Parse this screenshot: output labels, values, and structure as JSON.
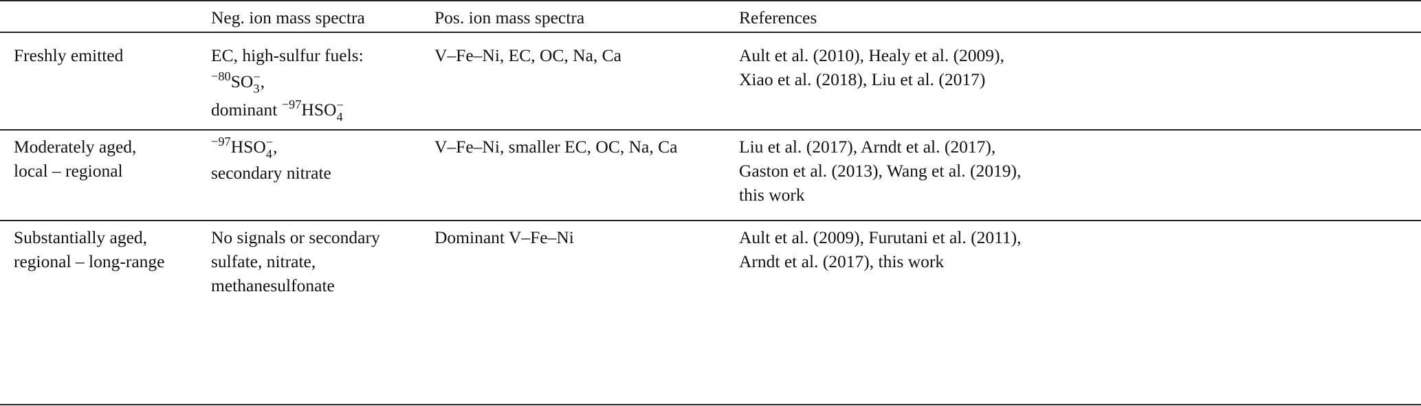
{
  "table": {
    "headers": [
      "",
      "Neg. ion mass spectra",
      "Pos. ion mass spectra",
      "References"
    ],
    "rows": [
      {
        "cells": [
          [
            [
              {
                "t": "Freshly emitted"
              }
            ]
          ],
          [
            [
              {
                "t": "EC, high-sulfur fuels:"
              }
            ],
            [
              {
                "t": "−80",
                "k": "sup"
              },
              {
                "t": "SO"
              },
              {
                "k": "subsup",
                "sub": "3",
                "sup": "−"
              },
              {
                "t": ","
              }
            ],
            [
              {
                "t": "dominant "
              },
              {
                "t": "−97",
                "k": "sup"
              },
              {
                "t": "HSO"
              },
              {
                "k": "subsup",
                "sub": "4",
                "sup": "−"
              }
            ]
          ],
          [
            [
              {
                "t": "V–Fe–Ni, EC, OC, Na, Ca"
              }
            ]
          ],
          [
            [
              {
                "t": "Ault et al. (2010), Healy et al. (2009),"
              }
            ],
            [
              {
                "t": "Xiao et al. (2018), Liu et al. (2017)"
              }
            ]
          ]
        ]
      },
      {
        "cells": [
          [
            [
              {
                "t": "Moderately aged,"
              }
            ],
            [
              {
                "t": "local – regional"
              }
            ]
          ],
          [
            [
              {
                "t": "−97",
                "k": "sup"
              },
              {
                "t": "HSO"
              },
              {
                "k": "subsup",
                "sub": "4",
                "sup": "−"
              },
              {
                "t": ","
              }
            ],
            [
              {
                "t": "secondary nitrate"
              }
            ]
          ],
          [
            [
              {
                "t": "V–Fe–Ni, smaller EC, OC, Na, Ca"
              }
            ]
          ],
          [
            [
              {
                "t": "Liu et al. (2017), Arndt et al. (2017),"
              }
            ],
            [
              {
                "t": "Gaston et al. (2013), Wang et al. (2019),"
              }
            ],
            [
              {
                "t": "this work"
              }
            ]
          ]
        ]
      },
      {
        "cells": [
          [
            [
              {
                "t": "Substantially aged,"
              }
            ],
            [
              {
                "t": "regional – long-range"
              }
            ]
          ],
          [
            [
              {
                "t": "No signals or secondary"
              }
            ],
            [
              {
                "t": "sulfate, nitrate,"
              }
            ],
            [
              {
                "t": "methanesulfonate"
              }
            ]
          ],
          [
            [
              {
                "t": "Dominant V–Fe–Ni"
              }
            ]
          ],
          [
            [
              {
                "t": "Ault et al. (2009), Furutani et al. (2011),"
              }
            ],
            [
              {
                "t": "Arndt et al. (2017), this work"
              }
            ]
          ]
        ]
      }
    ]
  }
}
